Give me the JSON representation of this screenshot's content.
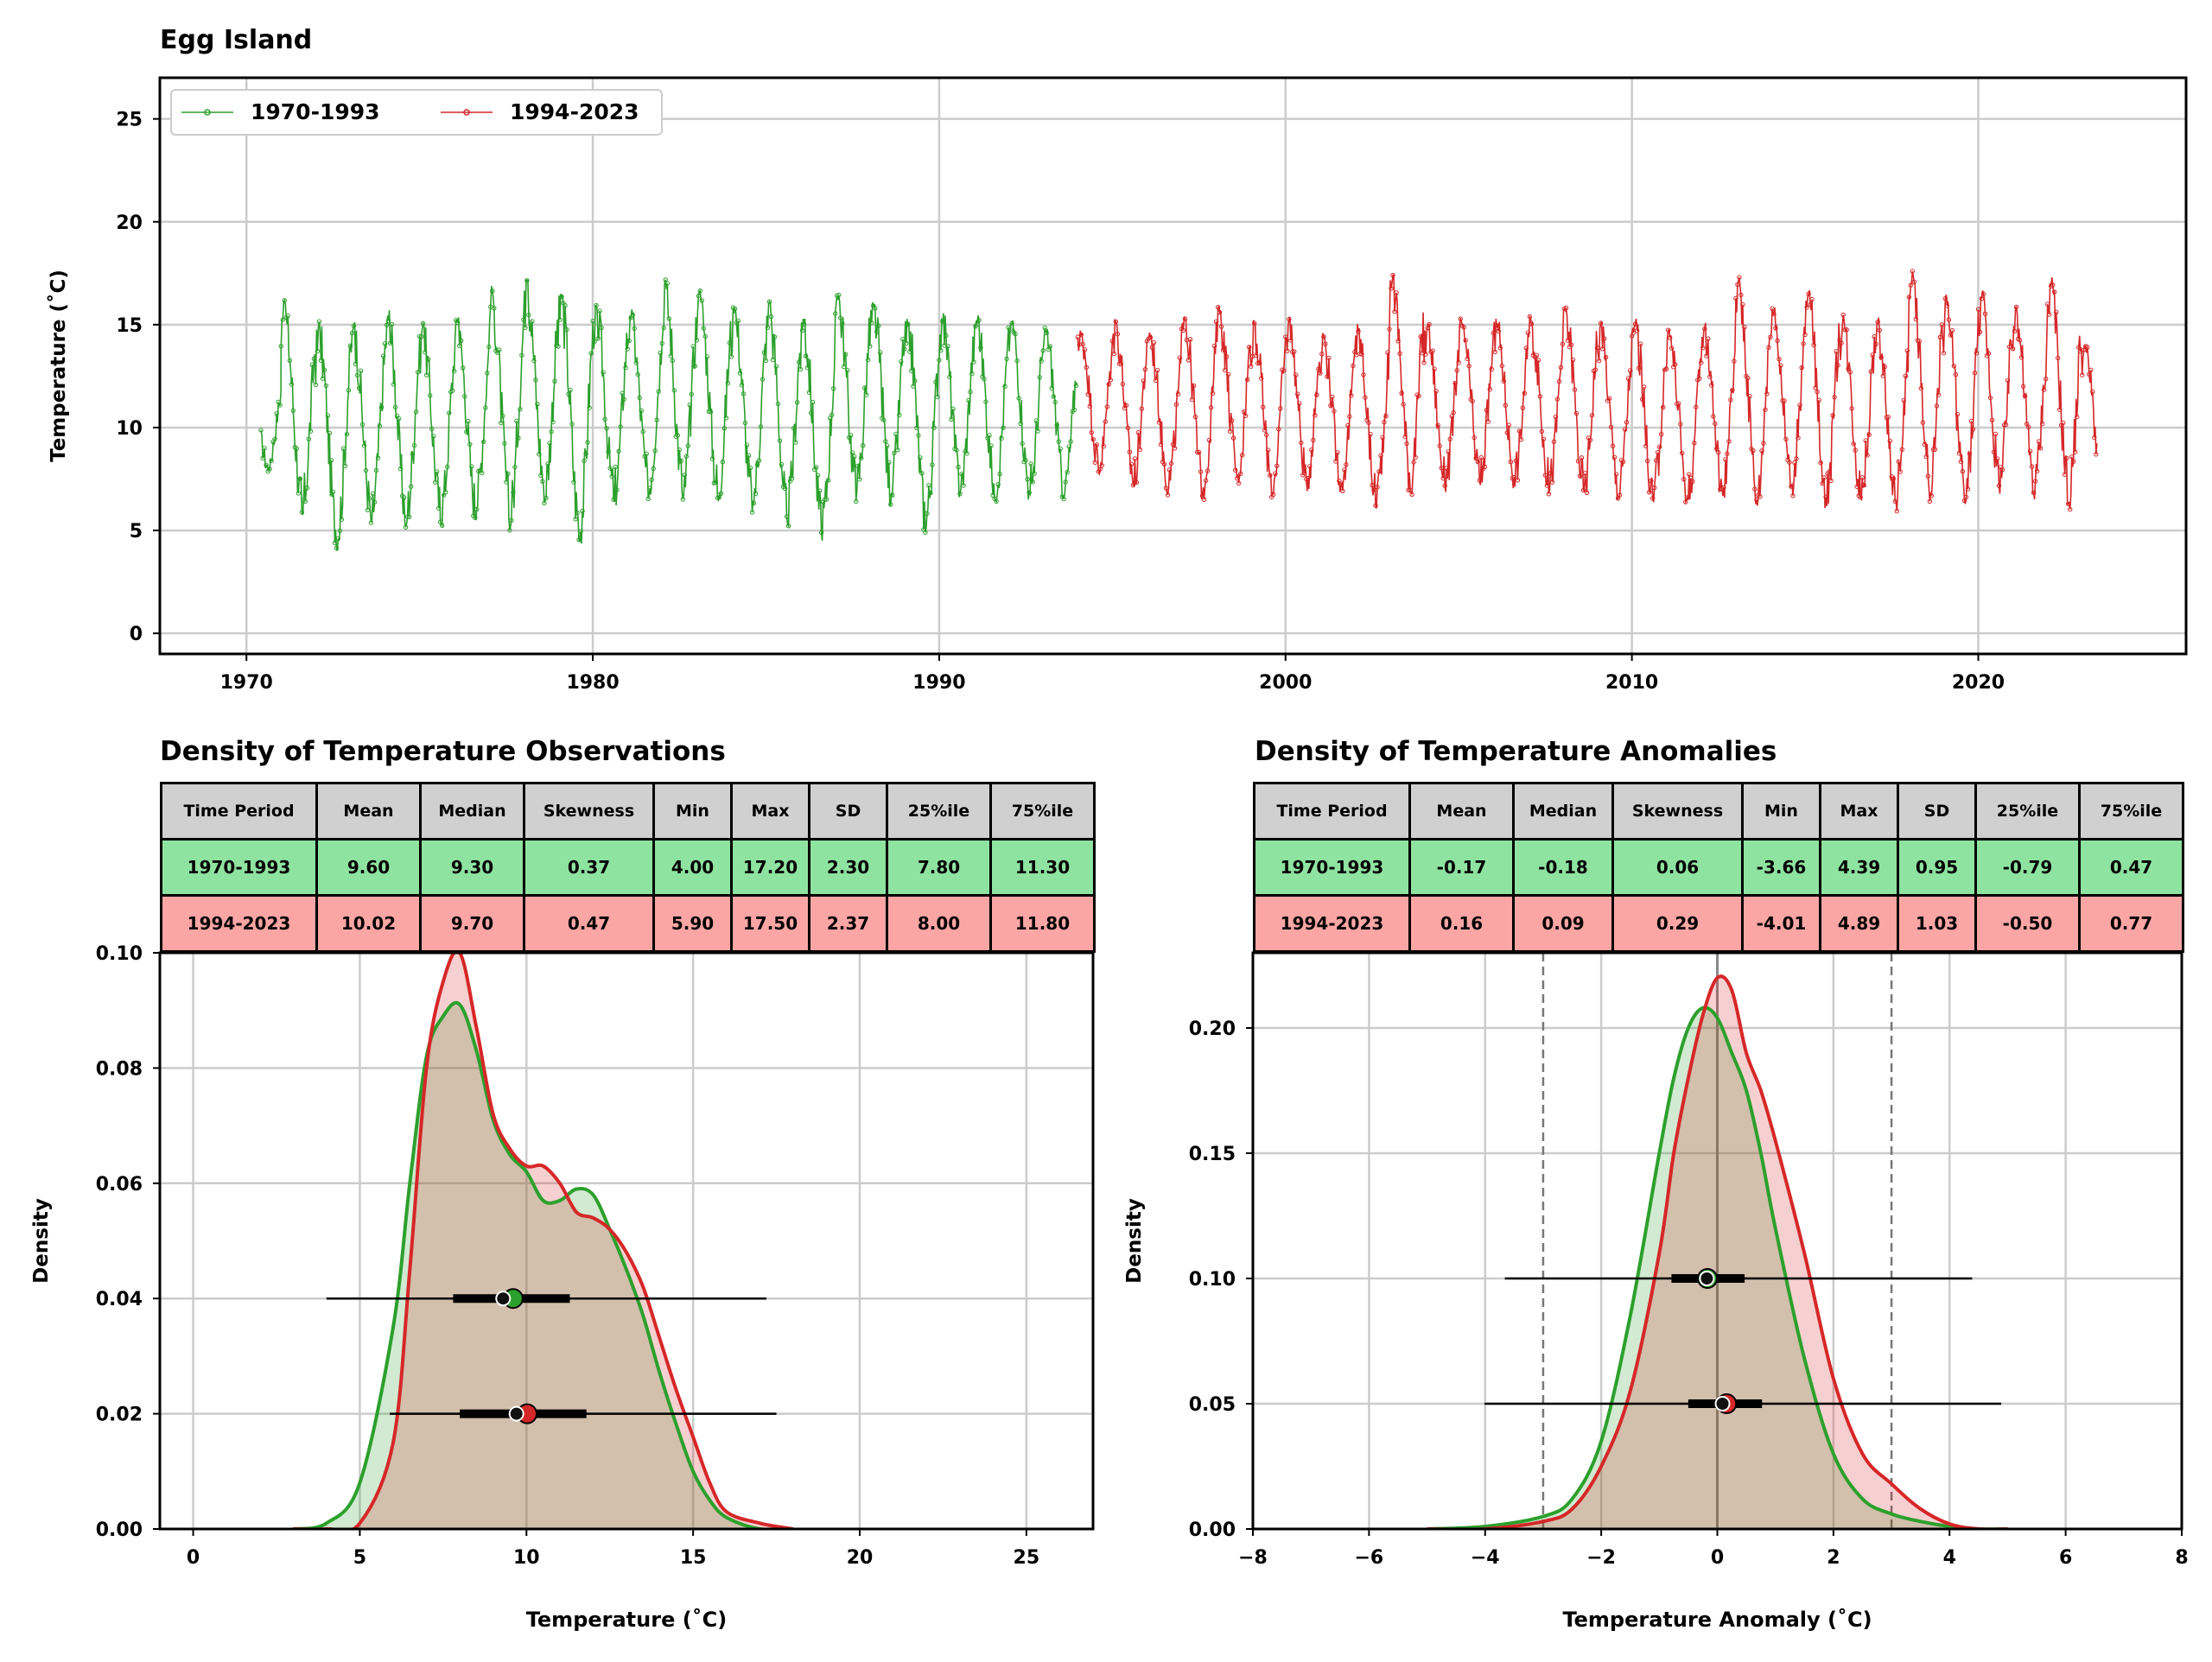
{
  "figure_title": "Egg Island",
  "chart_data": [
    {
      "id": "timeseries",
      "type": "line",
      "title": "Egg Island",
      "xlabel": "",
      "ylabel": "Temperature (˚C)",
      "xlim": [
        1967.5,
        2026
      ],
      "ylim": [
        -1,
        27
      ],
      "xticks": [
        "1970",
        "1980",
        "1990",
        "2000",
        "2010",
        "2020"
      ],
      "xtick_values": [
        1970,
        1980,
        1990,
        2000,
        2010,
        2020
      ],
      "yticks": [
        "0",
        "5",
        "10",
        "15",
        "20",
        "25"
      ],
      "ytick_values": [
        0,
        5,
        10,
        15,
        20,
        25
      ],
      "grid": true,
      "legend": "top-left",
      "seasonal_cycle": {
        "peak_month_fraction": 0.1,
        "trough_month_fraction": 0.62
      },
      "series": [
        {
          "name": "1970-1993",
          "color": "#2ca02c",
          "years": [
            1970,
            1971,
            1972,
            1973,
            1974,
            1975,
            1976,
            1977,
            1978,
            1979,
            1980,
            1981,
            1982,
            1983,
            1984,
            1985,
            1986,
            1987,
            1988,
            1989,
            1990,
            1991,
            1992,
            1993
          ],
          "annual_max": [
            12.5,
            16.2,
            15.2,
            15.3,
            15.7,
            15.1,
            15.4,
            16.9,
            17.2,
            16.8,
            16.3,
            15.9,
            17.2,
            16.7,
            16.0,
            16.2,
            15.4,
            16.5,
            16.4,
            15.6,
            15.7,
            15.5,
            15.6,
            14.9
          ],
          "annual_min": [
            7.8,
            5.4,
            4.0,
            5.0,
            5.0,
            5.2,
            5.5,
            5.0,
            6.3,
            4.2,
            6.0,
            6.5,
            6.2,
            6.3,
            5.8,
            5.2,
            4.5,
            6.4,
            6.2,
            4.8,
            6.5,
            6.4,
            6.4,
            6.4
          ]
        },
        {
          "name": "1994-2023",
          "color": "#d62728",
          "years": [
            1994,
            1995,
            1996,
            1997,
            1998,
            1999,
            2000,
            2001,
            2002,
            2003,
            2004,
            2005,
            2006,
            2007,
            2008,
            2009,
            2010,
            2011,
            2012,
            2013,
            2014,
            2015,
            2016,
            2017,
            2018,
            2019,
            2020,
            2021,
            2022,
            2023
          ],
          "annual_max": [
            15.0,
            15.3,
            14.8,
            15.5,
            15.9,
            15.3,
            15.4,
            14.6,
            15.2,
            17.5,
            15.1,
            15.5,
            15.4,
            15.4,
            16.0,
            15.2,
            15.4,
            14.8,
            15.3,
            17.4,
            16.1,
            16.8,
            15.5,
            15.6,
            17.6,
            16.5,
            16.8,
            15.9,
            17.3,
            14.0
          ],
          "annual_min": [
            7.6,
            6.9,
            6.7,
            6.5,
            7.2,
            6.6,
            6.9,
            6.8,
            6.0,
            6.8,
            6.8,
            7.0,
            7.1,
            6.7,
            6.4,
            6.3,
            6.0,
            6.2,
            6.5,
            6.0,
            6.7,
            6.1,
            6.3,
            5.9,
            6.3,
            6.0,
            6.7,
            6.5,
            6.1,
            6.2
          ]
        }
      ]
    },
    {
      "id": "density_obs",
      "type": "area",
      "title": "Density of Temperature Observations",
      "xlabel": "Temperature (˚C)",
      "ylabel": "Density",
      "xlim": [
        -1,
        27
      ],
      "ylim": [
        0,
        0.1
      ],
      "xticks": [
        "0",
        "5",
        "10",
        "15",
        "20",
        "25"
      ],
      "xtick_values": [
        0,
        5,
        10,
        15,
        20,
        25
      ],
      "yticks": [
        "0.00",
        "0.02",
        "0.04",
        "0.06",
        "0.08",
        "0.10"
      ],
      "ytick_values": [
        0,
        0.02,
        0.04,
        0.06,
        0.08,
        0.1
      ],
      "grid": true,
      "x": [
        3,
        4,
        5,
        6,
        6.5,
        7,
        7.5,
        8,
        8.5,
        9,
        9.5,
        10,
        10.5,
        11,
        11.5,
        12,
        12.5,
        13,
        13.5,
        14,
        14.5,
        15,
        15.5,
        16,
        17,
        18
      ],
      "series": [
        {
          "name": "1970-1993",
          "color": "#2ca02c",
          "y": [
            0,
            0.001,
            0.008,
            0.035,
            0.06,
            0.082,
            0.089,
            0.091,
            0.083,
            0.071,
            0.065,
            0.062,
            0.057,
            0.057,
            0.059,
            0.058,
            0.052,
            0.045,
            0.037,
            0.027,
            0.018,
            0.01,
            0.005,
            0.002,
            0,
            0
          ]
        },
        {
          "name": "1994-2023",
          "color": "#d62728",
          "y": [
            0,
            0,
            0.001,
            0.015,
            0.045,
            0.08,
            0.095,
            0.1,
            0.087,
            0.072,
            0.066,
            0.063,
            0.063,
            0.06,
            0.055,
            0.054,
            0.052,
            0.048,
            0.042,
            0.033,
            0.024,
            0.016,
            0.008,
            0.003,
            0.001,
            0
          ]
        }
      ],
      "summary_markers": [
        {
          "name": "1970-1993",
          "color": "#2ca02c",
          "y": 0.04,
          "min": 4.0,
          "q1": 7.8,
          "median": 9.3,
          "mean": 9.6,
          "q3": 11.3,
          "max": 17.2
        },
        {
          "name": "1994-2023",
          "color": "#d62728",
          "y": 0.02,
          "min": 5.9,
          "q1": 8.0,
          "median": 9.7,
          "mean": 10.02,
          "q3": 11.8,
          "max": 17.5
        }
      ]
    },
    {
      "id": "density_anom",
      "type": "area",
      "title": "Density of Temperature Anomalies",
      "xlabel": "Temperature Anomaly (˚C)",
      "ylabel": "Density",
      "xlim": [
        -8,
        8
      ],
      "ylim": [
        0,
        0.23
      ],
      "xticks": [
        "−8",
        "−6",
        "−4",
        "−2",
        "0",
        "2",
        "4",
        "6",
        "8"
      ],
      "xtick_values": [
        -8,
        -6,
        -4,
        -2,
        0,
        2,
        4,
        6,
        8
      ],
      "yticks": [
        "0.00",
        "0.05",
        "0.10",
        "0.15",
        "0.20"
      ],
      "ytick_values": [
        0,
        0.05,
        0.1,
        0.15,
        0.2
      ],
      "grid": true,
      "reference_lines": {
        "dashed": [
          -3,
          3
        ],
        "solid": [
          0
        ]
      },
      "x": [
        -5,
        -4,
        -3,
        -2.5,
        -2,
        -1.5,
        -1,
        -0.75,
        -0.5,
        -0.25,
        0,
        0.25,
        0.5,
        0.75,
        1,
        1.5,
        2,
        2.5,
        3,
        3.5,
        4,
        4.5,
        5
      ],
      "series": [
        {
          "name": "1970-1993",
          "color": "#2ca02c",
          "y": [
            0,
            0.001,
            0.005,
            0.012,
            0.035,
            0.085,
            0.15,
            0.18,
            0.2,
            0.208,
            0.204,
            0.19,
            0.175,
            0.15,
            0.12,
            0.068,
            0.03,
            0.012,
            0.006,
            0.003,
            0.001,
            0,
            0
          ]
        },
        {
          "name": "1994-2023",
          "color": "#d62728",
          "y": [
            0,
            0,
            0.003,
            0.008,
            0.025,
            0.055,
            0.11,
            0.15,
            0.18,
            0.205,
            0.22,
            0.215,
            0.19,
            0.175,
            0.155,
            0.11,
            0.06,
            0.03,
            0.018,
            0.008,
            0.002,
            0,
            0
          ]
        }
      ],
      "summary_markers": [
        {
          "name": "1970-1993",
          "color": "#2ca02c",
          "y": 0.1,
          "min": -3.66,
          "q1": -0.79,
          "median": -0.18,
          "mean": -0.17,
          "q3": 0.47,
          "max": 4.39
        },
        {
          "name": "1994-2023",
          "color": "#d62728",
          "y": 0.05,
          "min": -4.01,
          "q1": -0.5,
          "median": 0.09,
          "mean": 0.16,
          "q3": 0.77,
          "max": 4.89
        }
      ]
    }
  ],
  "tables": {
    "observations": {
      "headers": [
        "Time Period",
        "Mean",
        "Median",
        "Skewness",
        "Min",
        "Max",
        "SD",
        "25%ile",
        "75%ile"
      ],
      "rows": [
        [
          "1970-1993",
          "9.60",
          "9.30",
          "0.37",
          "4.00",
          "17.20",
          "2.30",
          "7.80",
          "11.30"
        ],
        [
          "1994-2023",
          "10.02",
          "9.70",
          "0.47",
          "5.90",
          "17.50",
          "2.37",
          "8.00",
          "11.80"
        ]
      ]
    },
    "anomalies": {
      "headers": [
        "Time Period",
        "Mean",
        "Median",
        "Skewness",
        "Min",
        "Max",
        "SD",
        "25%ile",
        "75%ile"
      ],
      "rows": [
        [
          "1970-1993",
          "-0.17",
          "-0.18",
          "0.06",
          "-3.66",
          "4.39",
          "0.95",
          "-0.79",
          "0.47"
        ],
        [
          "1994-2023",
          "0.16",
          "0.09",
          "0.29",
          "-4.01",
          "4.89",
          "1.03",
          "-0.50",
          "0.77"
        ]
      ]
    }
  }
}
